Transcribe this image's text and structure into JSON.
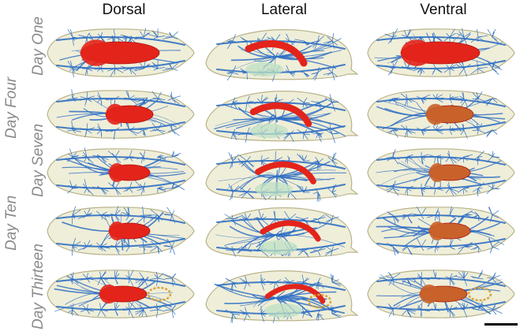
{
  "columns": [
    "Dorsal",
    "Lateral",
    "Ventral"
  ],
  "rows": [
    "Day One",
    "Day Four",
    "Day Seven",
    "Day Ten",
    "Day Thirteen"
  ],
  "colors": {
    "cuticle": "#efeed8",
    "cuticle_edge": "#b9b38c",
    "trachea": "#2f6fc4",
    "gut": "#e3241b",
    "gut_late": "#c8622a",
    "malpighian": "#d6a53a",
    "fat_body": "#bfe0c4"
  }
}
